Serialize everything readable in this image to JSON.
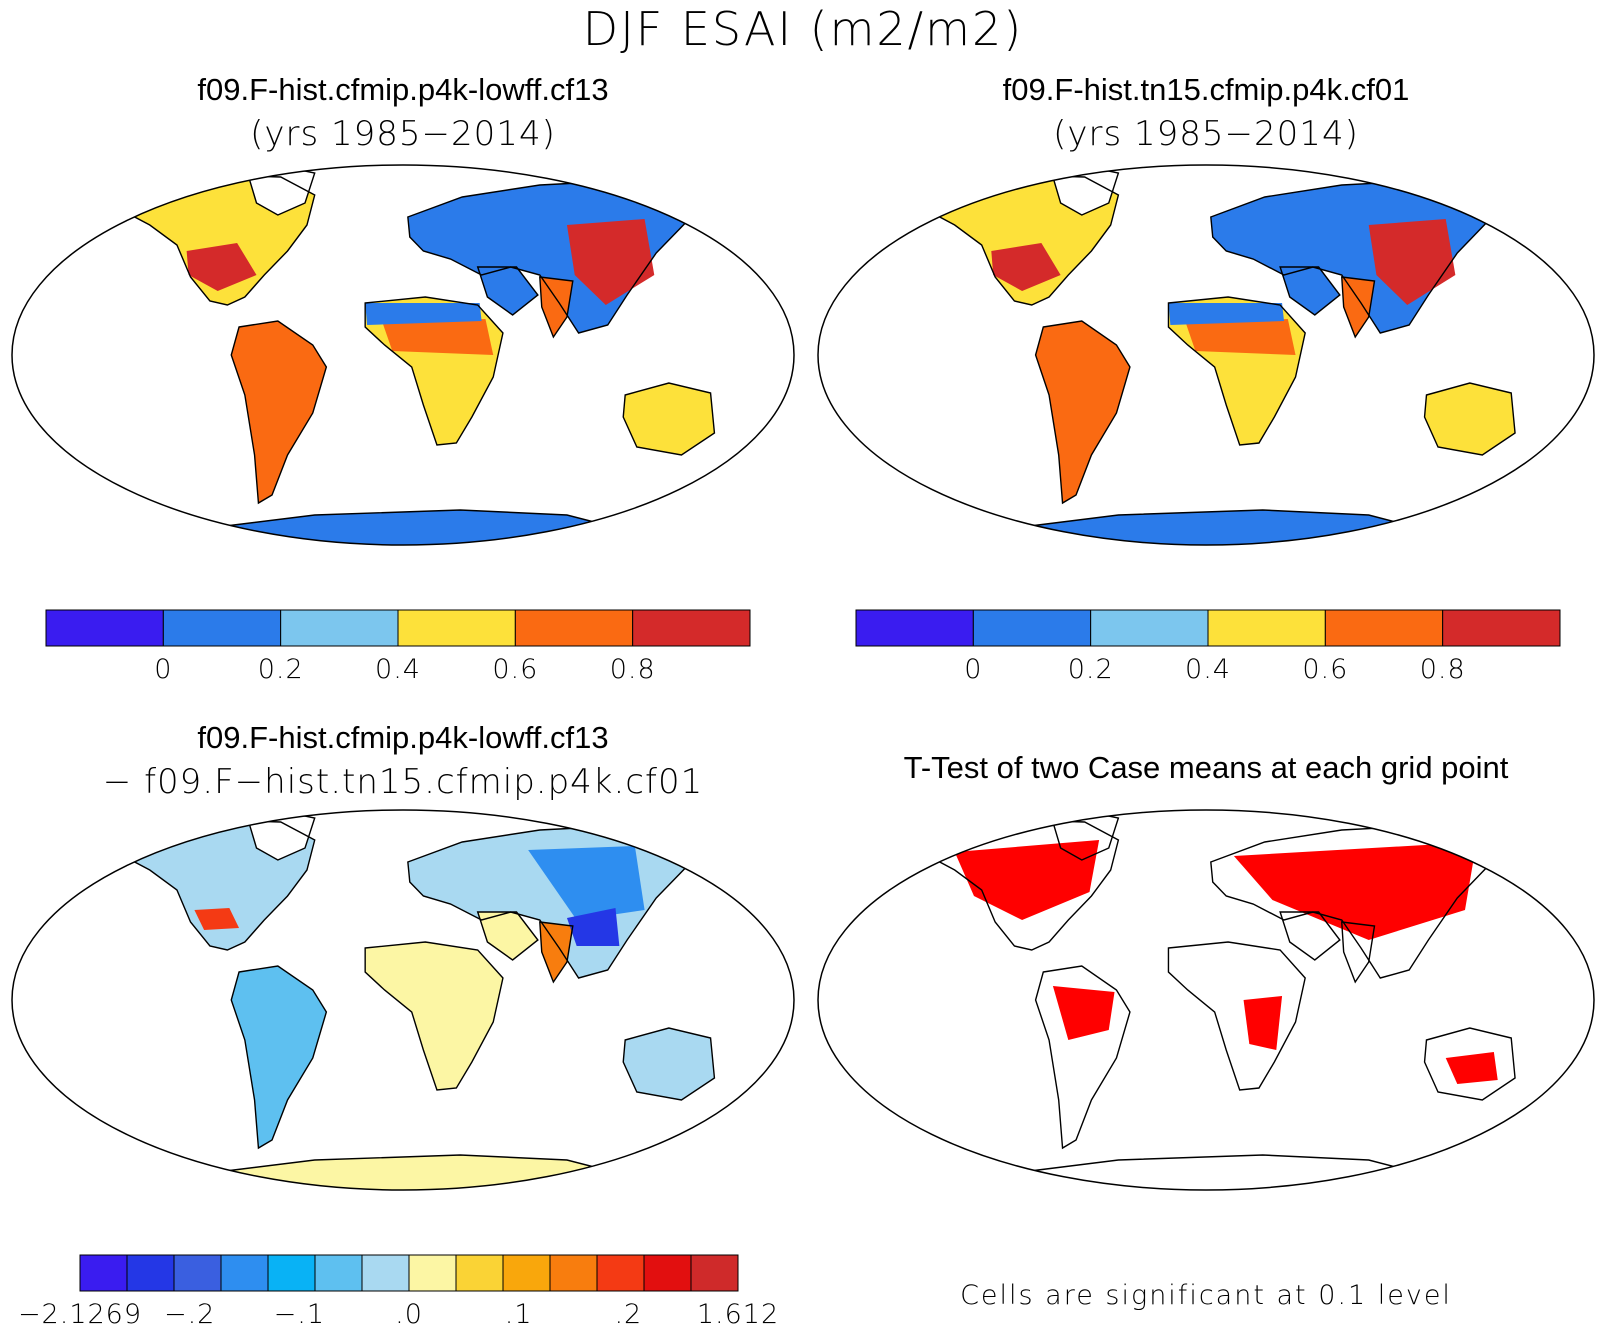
{
  "figure": {
    "title": "DJF ESAI (m2/m2)"
  },
  "panels": [
    {
      "id": "case1",
      "title": "f09.F-hist.cfmip.p4k-lowff.cf13",
      "subtitle": "(yrs 1985−2014)",
      "colorbar": {
        "colors": [
          "#3a1cf0",
          "#2b7bea",
          "#7cc6ee",
          "#fde13a",
          "#fa6a12",
          "#d42a2a"
        ],
        "ticks": [
          "0",
          "0.2",
          "0.4",
          "0.6",
          "0.8"
        ]
      }
    },
    {
      "id": "case2",
      "title": "f09.F-hist.tn15.cfmip.p4k.cf01",
      "subtitle": "(yrs 1985−2014)",
      "colorbar": {
        "colors": [
          "#3a1cf0",
          "#2b7bea",
          "#7cc6ee",
          "#fde13a",
          "#fa6a12",
          "#d42a2a"
        ],
        "ticks": [
          "0",
          "0.2",
          "0.4",
          "0.6",
          "0.8"
        ]
      }
    },
    {
      "id": "difference",
      "title": "f09.F-hist.cfmip.p4k-lowff.cf13",
      "subtitle": "− f09.F−hist.tn15.cfmip.p4k.cf01",
      "colorbar": {
        "colors": [
          "#3a1cf0",
          "#2437e6",
          "#3a5fe0",
          "#2e8ef0",
          "#09b2f5",
          "#5ec0f0",
          "#a9d9f1",
          "#fcf6a4",
          "#fad335",
          "#f9a70c",
          "#f87d0e",
          "#f43a14",
          "#e20f0f",
          "#cf2a2a"
        ],
        "ticks": [
          "−2.1269",
          "−.2",
          "−.1",
          ".0",
          ".1",
          ".2",
          "1.612"
        ]
      }
    },
    {
      "id": "ttest",
      "title": "T-Test of two Case means at each grid point",
      "note": "Cells are significant at 0.1 level",
      "significant_color": "#ff0000"
    }
  ]
}
